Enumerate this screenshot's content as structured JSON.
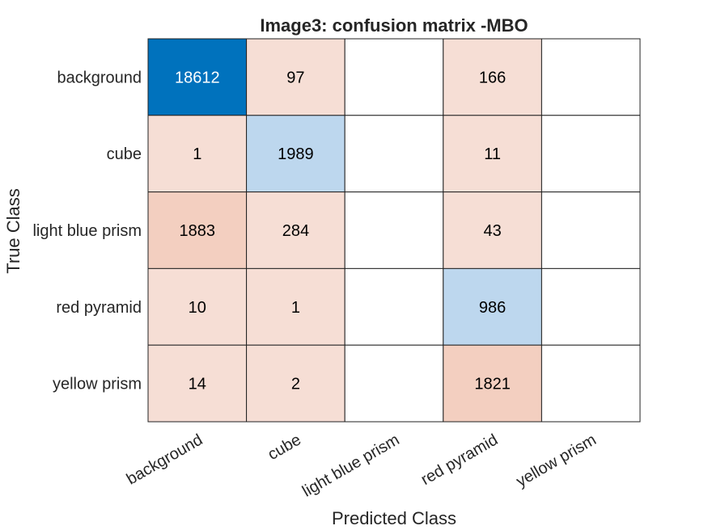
{
  "chart_data": {
    "type": "heatmap",
    "title": "Image3: confusion matrix -MBO",
    "xlabel": "Predicted Class",
    "ylabel": "True Class",
    "x_categories": [
      "background",
      "cube",
      "light blue prism",
      "red pyramid",
      "yellow prism"
    ],
    "y_categories": [
      "background",
      "cube",
      "light blue prism",
      "red pyramid",
      "yellow prism"
    ],
    "values": [
      [
        18612,
        97,
        null,
        166,
        null
      ],
      [
        1,
        1989,
        null,
        11,
        null
      ],
      [
        1883,
        284,
        null,
        43,
        null
      ],
      [
        10,
        1,
        null,
        986,
        null
      ],
      [
        14,
        2,
        null,
        1821,
        null
      ]
    ],
    "colors": {
      "diagonal_strong": "#0072bd",
      "diagonal_light": "#bdd7ee",
      "off_diagonal_light": "#f6ded5",
      "off_diagonal_medium": "#f3cfc0",
      "empty": "#ffffff",
      "grid": "#222222"
    },
    "grid": true,
    "legend": "none"
  }
}
